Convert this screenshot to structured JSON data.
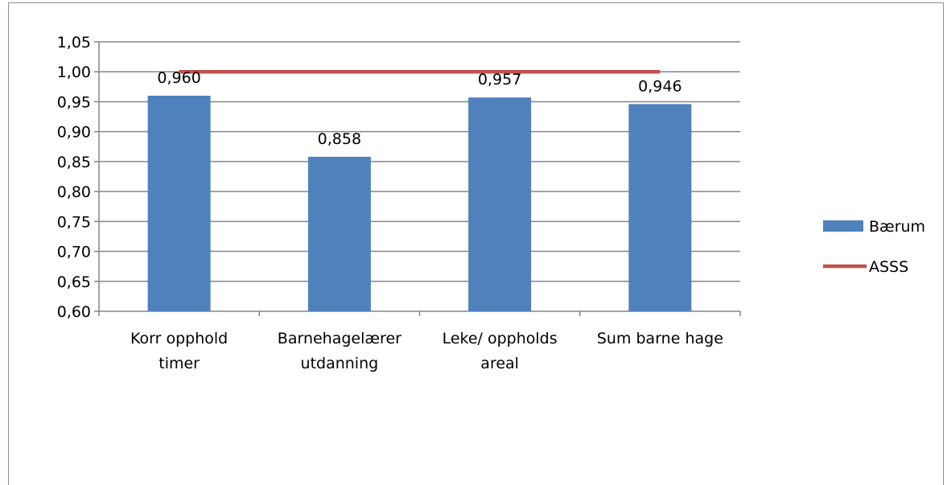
{
  "chart_data": {
    "type": "bar",
    "categories": [
      [
        "Korr opphold",
        "timer"
      ],
      [
        "Barnehagelærer",
        "utdanning"
      ],
      [
        "Leke/ oppholds",
        "areal"
      ],
      [
        "Sum barne hage"
      ]
    ],
    "series": [
      {
        "name": "Bærum",
        "type": "bar",
        "color": "#4f81bd",
        "values": [
          0.96,
          0.858,
          0.957,
          0.946
        ],
        "labels": [
          "0,960",
          "0,858",
          "0,957",
          "0,946"
        ]
      },
      {
        "name": "ASSS",
        "type": "line",
        "color": "#c0504d",
        "values": [
          1.0,
          1.0,
          1.0,
          1.0
        ]
      }
    ],
    "ylim": [
      0.6,
      1.05
    ],
    "yticks": [
      "0,60",
      "0,65",
      "0,70",
      "0,75",
      "0,80",
      "0,85",
      "0,90",
      "0,95",
      "1,00",
      "1,05"
    ],
    "ytick_values": [
      0.6,
      0.65,
      0.7,
      0.75,
      0.8,
      0.85,
      0.9,
      0.95,
      1.0,
      1.05
    ],
    "grid": true,
    "legend": "right"
  }
}
